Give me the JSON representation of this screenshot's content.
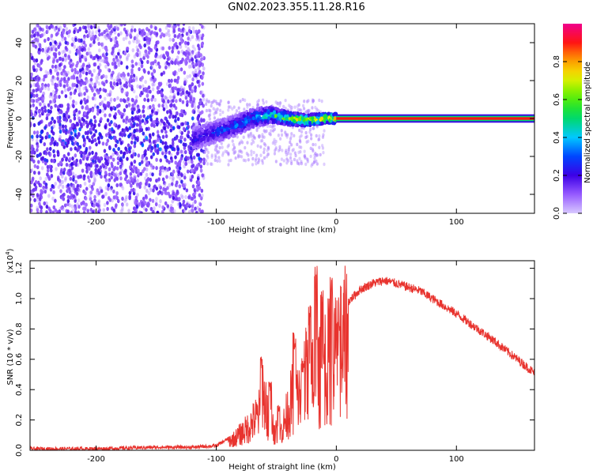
{
  "title": "GN02.2023.355.11.28.R16",
  "chart_data": [
    {
      "type": "heatmap",
      "name": "spectrogram",
      "xlabel": "Height of straight line (km)",
      "ylabel": "Frequency (Hz)",
      "xlim": [
        -255,
        165
      ],
      "ylim": [
        -50,
        50
      ],
      "xticks": [
        -200,
        -100,
        0,
        100
      ],
      "yticks": [
        -40,
        -20,
        0,
        20,
        40
      ],
      "xtick_labels": [
        "-200",
        "-100",
        "0",
        "100"
      ],
      "ytick_labels": [
        "-40",
        "-20",
        "0",
        "20",
        "40"
      ],
      "colorbar": {
        "label": "Normalized spectral amplitude",
        "range": [
          0,
          1
        ],
        "ticks": [
          0.0,
          0.2,
          0.4,
          0.6,
          0.8
        ],
        "tick_labels": [
          "0.0",
          "0.2",
          "0.4",
          "0.6",
          "0.8"
        ]
      },
      "signal_line": {
        "frequency": 0,
        "x_start": 0,
        "x_end": 165,
        "amplitude": 0.9
      },
      "signal_track": [
        {
          "x": -120,
          "f": -11,
          "amp": 0.25
        },
        {
          "x": -100,
          "f": -7,
          "amp": 0.3
        },
        {
          "x": -85,
          "f": -4,
          "amp": 0.35
        },
        {
          "x": -70,
          "f": 0,
          "amp": 0.4
        },
        {
          "x": -55,
          "f": 2,
          "amp": 0.55
        },
        {
          "x": -40,
          "f": 0,
          "amp": 0.7
        },
        {
          "x": -25,
          "f": -1,
          "amp": 0.8
        },
        {
          "x": -10,
          "f": 0,
          "amp": 0.85
        },
        {
          "x": 0,
          "f": 0,
          "amp": 0.9
        }
      ],
      "noise_region": {
        "x_start": -255,
        "x_end": -110,
        "amp": 0.15
      }
    },
    {
      "type": "line",
      "name": "snr",
      "xlabel": "Height of straight line (km)",
      "ylabel": "SNR (10 * v/v)",
      "scale_label": "(x10",
      "scale_exponent": "4",
      "xlim": [
        -255,
        165
      ],
      "ylim": [
        0,
        1.25
      ],
      "xticks": [
        -200,
        -100,
        0,
        100
      ],
      "yticks": [
        0.0,
        0.2,
        0.4,
        0.6,
        0.8,
        1.0,
        1.2
      ],
      "xtick_labels": [
        "-200",
        "-100",
        "0",
        "100"
      ],
      "ytick_labels": [
        "0.0",
        "0.2",
        "0.4",
        "0.6",
        "0.8",
        "1.0",
        "1.2"
      ],
      "color": "#e8332e",
      "series": [
        {
          "name": "SNR",
          "x": [
            -255,
            -200,
            -150,
            -120,
            -100,
            -85,
            -75,
            -65,
            -60,
            -55,
            -50,
            -45,
            -40,
            -35,
            -30,
            -25,
            -20,
            -15,
            -10,
            -5,
            0,
            10,
            20,
            30,
            40,
            50,
            70,
            100,
            130,
            165
          ],
          "y": [
            0.01,
            0.01,
            0.02,
            0.02,
            0.03,
            0.1,
            0.18,
            0.3,
            0.4,
            0.25,
            0.15,
            0.18,
            0.35,
            0.5,
            0.45,
            0.65,
            0.7,
            0.6,
            0.75,
            0.8,
            0.82,
            0.98,
            1.06,
            1.1,
            1.12,
            1.1,
            1.05,
            0.9,
            0.73,
            0.51
          ]
        }
      ],
      "spikes": [
        {
          "x": -62,
          "y": 0.63
        },
        {
          "x": -55,
          "y": 0.46
        },
        {
          "x": -48,
          "y": 0.3
        },
        {
          "x": -35,
          "y": 0.78
        },
        {
          "x": -28,
          "y": 0.6
        },
        {
          "x": -22,
          "y": 0.96
        },
        {
          "x": -17,
          "y": 1.24
        },
        {
          "x": -12,
          "y": 1.12
        },
        {
          "x": -4,
          "y": 1.24
        },
        {
          "x": 2,
          "y": 0.9
        }
      ]
    }
  ]
}
